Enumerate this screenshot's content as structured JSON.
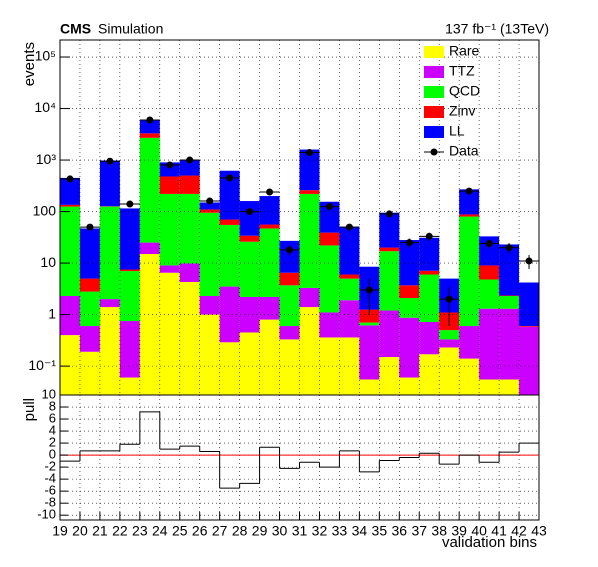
{
  "chart_data": [
    {
      "type": "histogram",
      "stacked": true,
      "log_y": true,
      "grid": true,
      "legend": "top-right",
      "title": "CMS",
      "subtitle": "Simulation",
      "annotation": "137 fb⁻¹ (13TeV)",
      "ylabel": "events",
      "bins": [
        19,
        20,
        21,
        22,
        23,
        24,
        25,
        26,
        27,
        28,
        29,
        30,
        31,
        32,
        33,
        34,
        35,
        36,
        37,
        38,
        39,
        40,
        41,
        42,
        43
      ],
      "ylim": [
        0.0275,
        214000
      ],
      "yticks": [
        {
          "value": 0.1,
          "label": "10⁻¹"
        },
        1,
        10,
        100,
        {
          "value": 1000,
          "label": "10³"
        },
        {
          "value": 10000,
          "label": "10⁴"
        },
        {
          "value": 100000,
          "label": "10⁵"
        }
      ],
      "series": [
        {
          "name": "Rare",
          "color": "#ffff00",
          "values": [
            0.4,
            0.19,
            1.4,
            0.06,
            15,
            6.5,
            4.3,
            1,
            0.29,
            0.45,
            0.8,
            0.33,
            1.4,
            0.36,
            0.36,
            0.055,
            0.15,
            0.06,
            0.17,
            0.23,
            0.14,
            0.055,
            0.055,
            0.02
          ]
        },
        {
          "name": "TTZ",
          "color": "#cc00ff",
          "values": [
            1.9,
            0.41,
            0.6,
            0.69,
            10,
            2.5,
            5.5,
            1.3,
            3.21,
            1.75,
            1.4,
            0.27,
            1.9,
            0.74,
            1.54,
            0.565,
            1.05,
            0.81,
            0.55,
            0.1,
            0.46,
            1.245,
            1.245,
            0.56
          ]
        },
        {
          "name": "QCD",
          "color": "#00ff00",
          "values": [
            122.7,
            2.2,
            123,
            6.25,
            2675,
            211,
            210.2,
            92.7,
            51.5,
            23.8,
            44.8,
            3.1,
            216.7,
            20.9,
            3.1,
            0.08,
            15.8,
            1.23,
            5.28,
            0.17,
            79.4,
            3.5,
            1.0,
            0
          ]
        },
        {
          "name": "Zinv",
          "color": "#ff0000",
          "values": [
            10,
            2.2,
            2,
            0.5,
            600,
            260,
            280,
            15,
            15,
            8,
            9,
            2.8,
            40,
            17,
            1,
            0.55,
            3,
            1.6,
            1.1,
            0.6,
            8,
            4.2,
            0.05,
            0.02
          ]
        },
        {
          "name": "LL",
          "color": "#0000ff",
          "values": [
            315,
            42,
            853,
            107.5,
            2700,
            420,
            480,
            40,
            550,
            126,
            144,
            20.5,
            1340,
            116,
            45,
            7.25,
            75,
            24.3,
            23.9,
            3.9,
            182,
            24,
            20.65,
            3.6
          ]
        }
      ],
      "data": {
        "name": "Data",
        "color": "#000000",
        "values": [
          430,
          50,
          950,
          140,
          6000,
          800,
          1000,
          160,
          450,
          100,
          240,
          18,
          1400,
          125,
          50,
          3,
          90,
          25,
          33,
          2,
          250,
          24,
          20,
          11
        ],
        "errors": [
          21,
          7,
          31,
          12,
          77,
          28,
          32,
          13,
          21,
          10,
          15,
          4,
          37,
          11,
          7,
          2,
          9,
          5,
          6,
          1.4,
          16,
          5,
          4.5,
          3.3
        ]
      }
    },
    {
      "type": "step",
      "grid": true,
      "ylabel": "pull",
      "xlabel": "validation bins",
      "color": "#000000",
      "reference_color": "#ff0000",
      "values": [
        -1,
        0.7,
        0.7,
        1.8,
        7.2,
        1,
        1.5,
        0.6,
        -5.5,
        -4.7,
        1.3,
        -2.2,
        -1.2,
        -2,
        0.7,
        -2.8,
        -0.9,
        -0.4,
        0.3,
        -1.5,
        0,
        -1.2,
        0.5,
        2
      ],
      "ylim": [
        -10.8,
        10
      ],
      "yticks": [
        -10,
        -8,
        -6,
        -4,
        -2,
        0,
        2,
        4,
        6,
        8,
        10
      ],
      "xlim": [
        19,
        43
      ],
      "xticks": [
        19,
        20,
        21,
        22,
        23,
        24,
        25,
        26,
        27,
        28,
        29,
        30,
        31,
        32,
        33,
        34,
        35,
        36,
        37,
        38,
        39,
        40,
        41,
        42,
        43
      ]
    }
  ]
}
